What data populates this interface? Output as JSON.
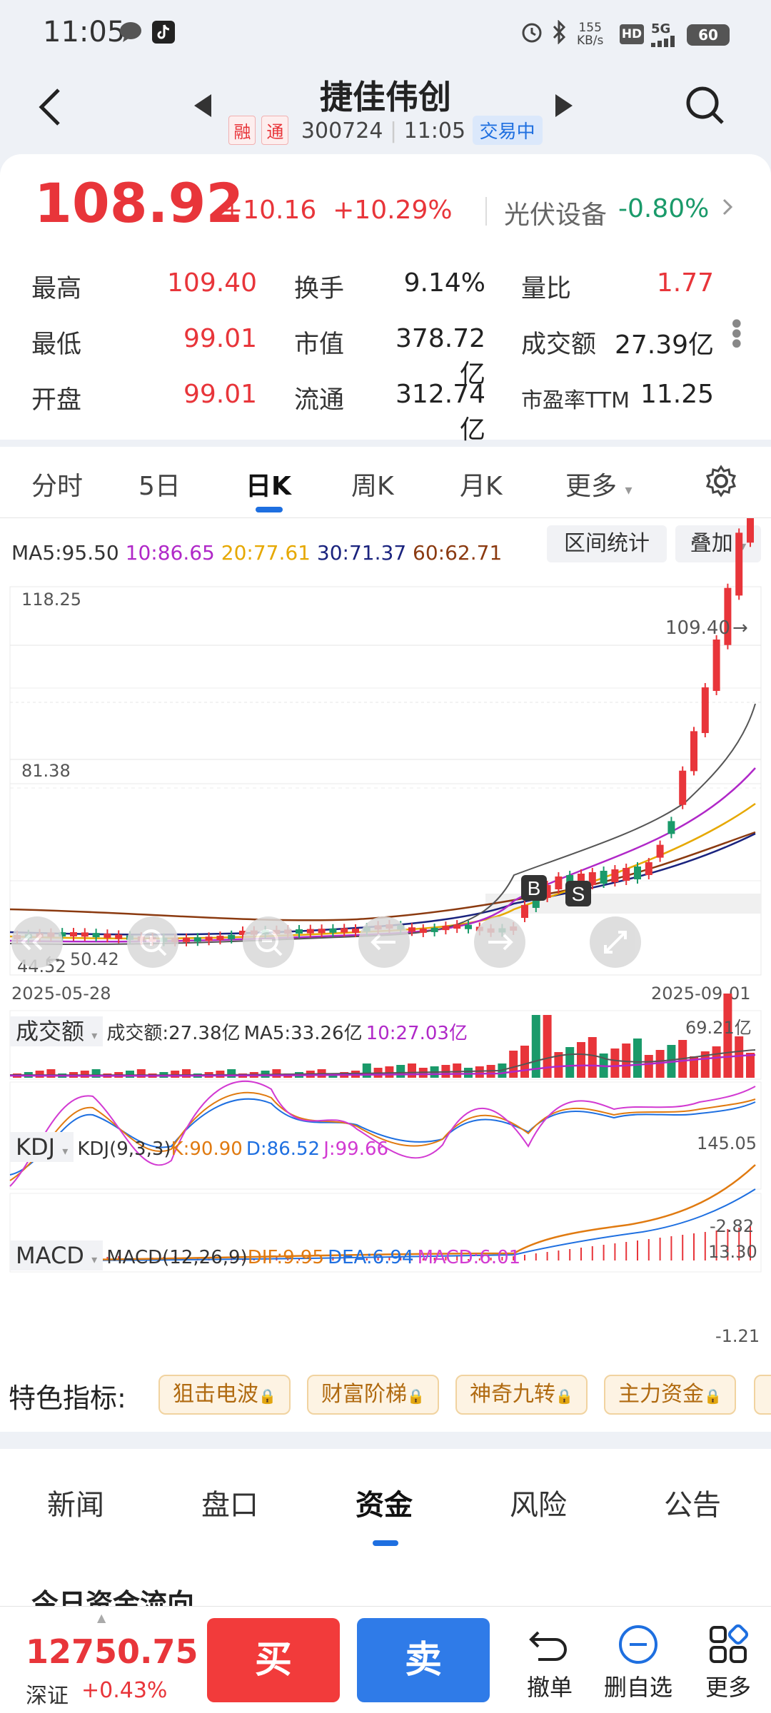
{
  "status_bar": {
    "time": "11:05",
    "speed_value": "155",
    "speed_unit": "KB/s",
    "hd": "HD",
    "network": "5G",
    "battery": "60"
  },
  "header": {
    "stock_name": "捷佳伟创",
    "tag_margin": "融",
    "tag_connect": "通",
    "code": "300724",
    "time": "11:05",
    "trade_status": "交易中"
  },
  "quote": {
    "price": "108.92",
    "change_abs": "+10.16",
    "change_pct": "+10.29%",
    "sector_name": "光伏设备",
    "sector_change": "-0.80%",
    "stats": [
      {
        "label": "最高",
        "value": "109.40",
        "color": "red"
      },
      {
        "label": "换手",
        "value": "9.14%",
        "color": "dark"
      },
      {
        "label": "量比",
        "value": "1.77",
        "color": "red"
      },
      {
        "label": "最低",
        "value": "99.01",
        "color": "red"
      },
      {
        "label": "市值",
        "value": "378.72亿",
        "color": "dark"
      },
      {
        "label": "成交额",
        "value": "27.39亿",
        "color": "dark"
      },
      {
        "label": "开盘",
        "value": "99.01",
        "color": "red"
      },
      {
        "label": "流通",
        "value": "312.74亿",
        "color": "dark"
      },
      {
        "label": "市盈率TTM",
        "value": "11.25",
        "color": "dark"
      }
    ]
  },
  "kline_tabs": [
    "分时",
    "5日",
    "日K",
    "周K",
    "月K",
    "更多"
  ],
  "kline_active_tab": "日K",
  "chart": {
    "ma": [
      {
        "label": "MA5:95.50",
        "color": "#333333"
      },
      {
        "label": "10:86.65",
        "color": "#b028c8"
      },
      {
        "label": "20:77.61",
        "color": "#e6a800"
      },
      {
        "label": "30:71.37",
        "color": "#1a237e"
      },
      {
        "label": "60:62.71",
        "color": "#8b3a10"
      }
    ],
    "range_button": "区间统计",
    "overlay_button": "叠加",
    "y_max": "118.25",
    "y_mid": "81.38",
    "y_min": "44.52",
    "high_marker": "109.40",
    "low_marker": "50.42",
    "date_start": "2025-05-28",
    "date_end": "2025-09-01",
    "buy_marker": "B",
    "sell_marker": "S",
    "volume": {
      "name": "成交额",
      "summary": "成交额:27.38亿",
      "ma5": "MA5:33.26亿",
      "ma10": "10:27.03亿",
      "max": "69.21亿"
    },
    "kdj": {
      "name": "KDJ",
      "params": "KDJ(9,3,3)",
      "k": "K:90.90",
      "d": "D:86.52",
      "j": "J:99.66",
      "max": "145.05",
      "min": "-2.82"
    },
    "macd": {
      "name": "MACD",
      "params": "MACD(12,26,9)",
      "dif": "DIF:9.95",
      "dea": "DEA:6.94",
      "macd": "MACD:6.01",
      "max": "13.30",
      "min": "-1.21"
    }
  },
  "features": {
    "label": "特色指标:",
    "items": [
      "狙击电波",
      "财富阶梯",
      "神奇九转",
      "主力资金"
    ]
  },
  "info_tabs": [
    "新闻",
    "盘口",
    "资金",
    "风险",
    "公告"
  ],
  "info_active_tab": "资金",
  "section_title": "今日资金流向",
  "bottom": {
    "index_value": "12750.75",
    "index_name": "深证",
    "index_change": "+0.43%",
    "buy": "买",
    "sell": "卖",
    "actions": [
      "撤单",
      "删自选",
      "更多"
    ]
  },
  "colors": {
    "up": "#e8353a",
    "down": "#1a9a6a",
    "accent": "#1e6fe0"
  }
}
